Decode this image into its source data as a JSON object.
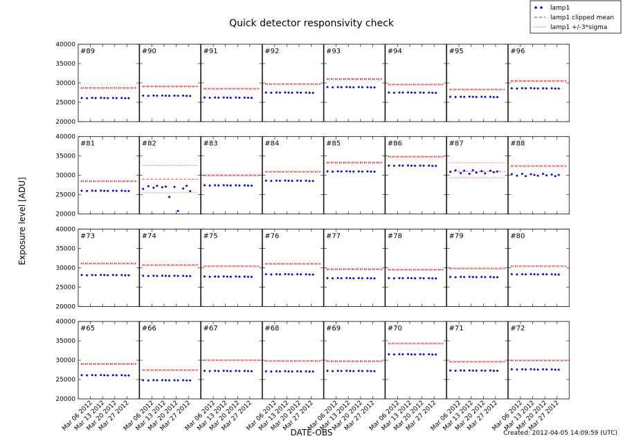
{
  "chart_data": {
    "type": "scatter",
    "title": "Quick detector responsivity check",
    "xlabel": "DATE-OBS",
    "ylabel": "Exposure level [ADU]",
    "footnote": "Created: 2012-04-05 14:09:59 (UTC)",
    "series": [
      {
        "name": "lamp1",
        "color": "#0000ff"
      },
      {
        "name": "lamp1 clipped mean",
        "color": "#ff0000"
      },
      {
        "name": "lamp1 +/-3*sigma",
        "color": "#ff0000"
      }
    ],
    "ylim": [
      20000,
      40000
    ],
    "yticks": [
      20000,
      25000,
      30000,
      35000,
      40000
    ],
    "xlim": [
      "2012-02-28",
      "2012-04-03"
    ],
    "xticks": [
      {
        "value": "2012-03-06",
        "label": "Mar 06 2012"
      },
      {
        "value": "2012-03-13",
        "label": "Mar 13 2012"
      },
      {
        "value": "2012-03-20",
        "label": "Mar 20 2012"
      },
      {
        "value": "2012-03-27",
        "label": "Mar 27 2012"
      }
    ],
    "x": [
      "2012-03-01",
      "2012-03-04",
      "2012-03-07",
      "2012-03-09",
      "2012-03-12",
      "2012-03-14",
      "2012-03-16",
      "2012-03-19",
      "2012-03-21",
      "2012-03-24",
      "2012-03-26",
      "2012-03-28"
    ],
    "panels": [
      {
        "label": "#89",
        "values": [
          26120,
          26060,
          26130,
          26090,
          26150,
          26100,
          26070,
          26120,
          26080,
          26110,
          26050,
          26040
        ],
        "mean": 28700,
        "sigma": [
          28550,
          28850
        ]
      },
      {
        "label": "#90",
        "values": [
          26720,
          26660,
          26730,
          26690,
          26750,
          26700,
          26670,
          26720,
          26680,
          26710,
          26650,
          26640
        ],
        "mean": 29100,
        "sigma": [
          28950,
          29250
        ]
      },
      {
        "label": "#91",
        "values": [
          26220,
          26160,
          26230,
          26190,
          26250,
          26200,
          26170,
          26220,
          26180,
          26210,
          26150,
          26140
        ],
        "mean": 28500,
        "sigma": [
          28350,
          28650
        ]
      },
      {
        "label": "#92",
        "values": [
          27520,
          27460,
          27530,
          27490,
          27550,
          27500,
          27470,
          27520,
          27480,
          27510,
          27450,
          27440
        ],
        "mean": 29700,
        "sigma": [
          29550,
          29850
        ]
      },
      {
        "label": "#93",
        "values": [
          28920,
          28860,
          28930,
          28890,
          28950,
          28900,
          28870,
          28920,
          28880,
          28910,
          28850,
          28840
        ],
        "mean": 31000,
        "sigma": [
          30850,
          31150
        ]
      },
      {
        "label": "#94",
        "values": [
          27520,
          27460,
          27530,
          27490,
          27550,
          27500,
          27470,
          27520,
          27480,
          27510,
          27450,
          27440
        ],
        "mean": 29600,
        "sigma": [
          29450,
          29750
        ]
      },
      {
        "label": "#95",
        "values": [
          26420,
          26360,
          26430,
          26390,
          26450,
          26400,
          26370,
          26420,
          26380,
          26410,
          26350,
          26340
        ],
        "mean": 28300,
        "sigma": [
          28150,
          28450
        ]
      },
      {
        "label": "#96",
        "values": [
          28620,
          28560,
          28630,
          28590,
          28650,
          28600,
          28570,
          28620,
          28580,
          28610,
          28550,
          28540
        ],
        "mean": 30500,
        "sigma": [
          30350,
          30650
        ]
      },
      {
        "label": "#81",
        "values": [
          26020,
          25960,
          26030,
          25990,
          26050,
          26000,
          25970,
          26020,
          25980,
          26010,
          25950,
          25940
        ],
        "mean": 28500,
        "sigma": [
          28350,
          28650
        ]
      },
      {
        "label": "#82",
        "values": [
          26500,
          27200,
          26800,
          27300,
          26900,
          27100,
          24400,
          27000,
          20800,
          26600,
          27300,
          25900
        ],
        "mean": 29000,
        "sigma": [
          25500,
          32500
        ]
      },
      {
        "label": "#83",
        "values": [
          27420,
          27360,
          27430,
          27390,
          27450,
          27400,
          27370,
          27420,
          27380,
          27410,
          27350,
          27340
        ],
        "mean": 30000,
        "sigma": [
          29850,
          30150
        ]
      },
      {
        "label": "#84",
        "values": [
          28620,
          28560,
          28630,
          28590,
          28650,
          28600,
          28570,
          28620,
          28580,
          28610,
          28550,
          28540
        ],
        "mean": 30900,
        "sigma": [
          30750,
          31050
        ]
      },
      {
        "label": "#85",
        "values": [
          31020,
          30960,
          31030,
          30990,
          31050,
          31000,
          30970,
          31020,
          30980,
          31010,
          30950,
          30940
        ],
        "mean": 33300,
        "sigma": [
          33150,
          33450
        ]
      },
      {
        "label": "#86",
        "values": [
          32520,
          32460,
          32530,
          32490,
          32550,
          32500,
          32470,
          32520,
          32480,
          32510,
          32450,
          32440
        ],
        "mean": 34800,
        "sigma": [
          34650,
          34950
        ]
      },
      {
        "label": "#87",
        "values": [
          30900,
          31300,
          30600,
          31200,
          30400,
          31300,
          30700,
          31100,
          30500,
          31200,
          30800,
          31000
        ],
        "mean": 31000,
        "sigma": [
          29400,
          33300
        ]
      },
      {
        "label": "#88",
        "values": [
          30300,
          29900,
          30400,
          29800,
          30300,
          30100,
          29900,
          30400,
          30000,
          30200,
          29800,
          30100
        ],
        "mean": 32400,
        "sigma": [
          32250,
          32550
        ]
      },
      {
        "label": "#73",
        "values": [
          28120,
          28060,
          28130,
          28090,
          28150,
          28100,
          28070,
          28120,
          28080,
          28110,
          28050,
          28040
        ],
        "mean": 31100,
        "sigma": [
          30950,
          31250
        ]
      },
      {
        "label": "#74",
        "values": [
          27920,
          27860,
          27930,
          27890,
          27950,
          27900,
          27870,
          27920,
          27880,
          27910,
          27850,
          27840
        ],
        "mean": 30700,
        "sigma": [
          30550,
          30850
        ]
      },
      {
        "label": "#75",
        "values": [
          27720,
          27660,
          27730,
          27690,
          27750,
          27700,
          27670,
          27720,
          27680,
          27710,
          27650,
          27640
        ],
        "mean": 30400,
        "sigma": [
          30250,
          30550
        ]
      },
      {
        "label": "#76",
        "values": [
          28320,
          28260,
          28330,
          28290,
          28350,
          28300,
          28270,
          28320,
          28280,
          28310,
          28250,
          28240
        ],
        "mean": 31000,
        "sigma": [
          30850,
          31150
        ]
      },
      {
        "label": "#77",
        "values": [
          27320,
          27260,
          27330,
          27290,
          27350,
          27300,
          27270,
          27320,
          27280,
          27310,
          27250,
          27240
        ],
        "mean": 29600,
        "sigma": [
          29450,
          29750
        ]
      },
      {
        "label": "#78",
        "values": [
          27320,
          27260,
          27330,
          27290,
          27350,
          27300,
          27270,
          27320,
          27280,
          27310,
          27250,
          27240
        ],
        "mean": 29500,
        "sigma": [
          29350,
          29650
        ]
      },
      {
        "label": "#79",
        "values": [
          27620,
          27560,
          27630,
          27590,
          27650,
          27600,
          27570,
          27620,
          27580,
          27610,
          27550,
          27540
        ],
        "mean": 29800,
        "sigma": [
          29650,
          29950
        ]
      },
      {
        "label": "#80",
        "values": [
          28320,
          28260,
          28330,
          28290,
          28350,
          28300,
          28270,
          28320,
          28280,
          28310,
          28250,
          28240
        ],
        "mean": 30400,
        "sigma": [
          30250,
          30550
        ]
      },
      {
        "label": "#65",
        "values": [
          26120,
          26060,
          26130,
          26090,
          26150,
          26100,
          26070,
          26120,
          26080,
          26110,
          26050,
          26040
        ],
        "mean": 29000,
        "sigma": [
          28850,
          29150
        ]
      },
      {
        "label": "#66",
        "values": [
          24820,
          24760,
          24830,
          24790,
          24850,
          24800,
          24770,
          24820,
          24780,
          24810,
          24750,
          24740
        ],
        "mean": 27400,
        "sigma": [
          27250,
          27550
        ]
      },
      {
        "label": "#67",
        "values": [
          27220,
          27160,
          27230,
          27190,
          27250,
          27200,
          27170,
          27220,
          27180,
          27210,
          27150,
          27140
        ],
        "mean": 30000,
        "sigma": [
          29850,
          30150
        ]
      },
      {
        "label": "#68",
        "values": [
          27120,
          27060,
          27130,
          27090,
          27150,
          27100,
          27070,
          27120,
          27080,
          27110,
          27050,
          27040
        ],
        "mean": 29800,
        "sigma": [
          29650,
          29950
        ]
      },
      {
        "label": "#69",
        "values": [
          27220,
          27160,
          27230,
          27190,
          27250,
          27200,
          27170,
          27220,
          27180,
          27210,
          27150,
          27140
        ],
        "mean": 29700,
        "sigma": [
          29550,
          29850
        ]
      },
      {
        "label": "#70",
        "values": [
          31520,
          31460,
          31530,
          31490,
          31550,
          31500,
          31470,
          31520,
          31480,
          31510,
          31450,
          31440
        ],
        "mean": 34300,
        "sigma": [
          34150,
          34450
        ]
      },
      {
        "label": "#71",
        "values": [
          27320,
          27260,
          27330,
          27290,
          27350,
          27300,
          27270,
          27320,
          27280,
          27310,
          27250,
          27240
        ],
        "mean": 29600,
        "sigma": [
          29450,
          29750
        ]
      },
      {
        "label": "#72",
        "values": [
          27620,
          27560,
          27630,
          27590,
          27650,
          27600,
          27570,
          27620,
          27580,
          27610,
          27550,
          27540
        ],
        "mean": 29900,
        "sigma": [
          29750,
          30050
        ]
      }
    ]
  }
}
